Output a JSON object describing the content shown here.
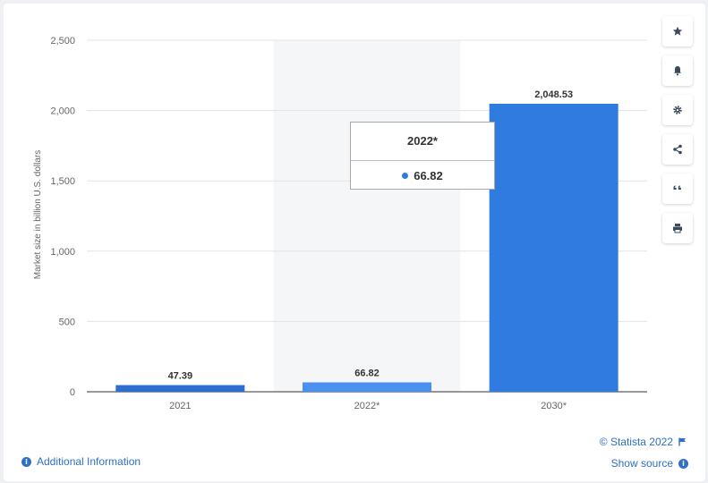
{
  "chart_data": {
    "type": "bar",
    "categories": [
      "2021",
      "2022*",
      "2030*"
    ],
    "values": [
      47.39,
      66.82,
      2048.53
    ],
    "value_labels": [
      "47.39",
      "66.82",
      "2,048.53"
    ],
    "title": "",
    "xlabel": "",
    "ylabel": "Market size in billion U.S. dollars",
    "ylim": [
      0,
      2500
    ],
    "yticks": [
      0,
      500,
      1000,
      1500,
      2000,
      2500
    ],
    "ytick_labels": [
      "0",
      "500",
      "1,000",
      "1,500",
      "2,000",
      "2,500"
    ],
    "grid": true,
    "highlighted_category": "2022*",
    "bar_colors": [
      "#2c6fd1",
      "#4a90ee",
      "#2f7be0"
    ]
  },
  "tooltip": {
    "title": "2022*",
    "value": "66.82",
    "color": "#2f7be0"
  },
  "toolbar": {
    "icons": [
      "star-icon",
      "bell-icon",
      "gear-icon",
      "share-icon",
      "quote-icon",
      "print-icon"
    ]
  },
  "footer": {
    "additional_info": "Additional Information",
    "copyright": "© Statista 2022",
    "show_source": "Show source"
  },
  "colors": {
    "accent": "#2f6fc4",
    "highlight_band": "#f5f6f8"
  }
}
